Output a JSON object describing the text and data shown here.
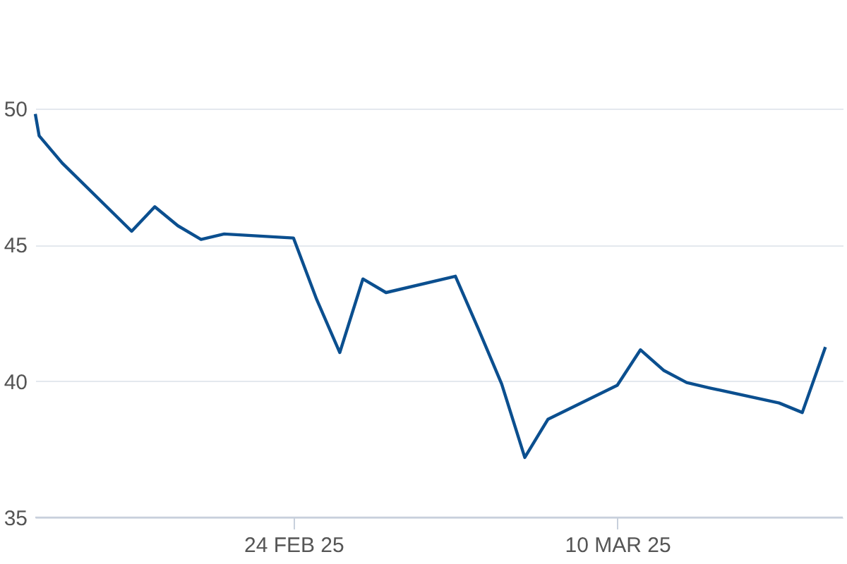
{
  "chart_data": {
    "type": "line",
    "x": [
      "2025-02-12T20:00",
      "2025-02-13",
      "2025-02-14",
      "2025-02-17",
      "2025-02-18",
      "2025-02-19",
      "2025-02-20",
      "2025-02-21",
      "2025-02-24",
      "2025-02-25",
      "2025-02-26",
      "2025-02-27",
      "2025-02-28",
      "2025-03-03",
      "2025-03-04",
      "2025-03-05",
      "2025-03-06",
      "2025-03-07",
      "2025-03-10",
      "2025-03-11",
      "2025-03-12",
      "2025-03-13",
      "2025-03-14",
      "2025-03-17",
      "2025-03-18",
      "2025-03-19"
    ],
    "series": [
      {
        "color": "#0b4f8f",
        "values": [
          49.8,
          49.0,
          48.0,
          45.5,
          46.4,
          45.7,
          45.2,
          45.4,
          45.25,
          43.0,
          41.05,
          43.75,
          43.25,
          43.85,
          41.9,
          39.9,
          37.2,
          38.6,
          39.85,
          41.15,
          40.4,
          39.95,
          39.75,
          39.2,
          38.85,
          41.25
        ]
      }
    ],
    "xlim": [
      "2025-02-12T20:00",
      "2025-03-19T18:00"
    ],
    "xticks": [
      {
        "value": "2025-02-24",
        "label": "24 FEB 25"
      },
      {
        "value": "2025-03-10",
        "label": "10 MAR 25"
      }
    ],
    "ylim": [
      35,
      50
    ],
    "yticks": [
      35,
      40,
      45,
      50
    ],
    "grid": "y",
    "marker": "none",
    "line_style": "solid"
  }
}
